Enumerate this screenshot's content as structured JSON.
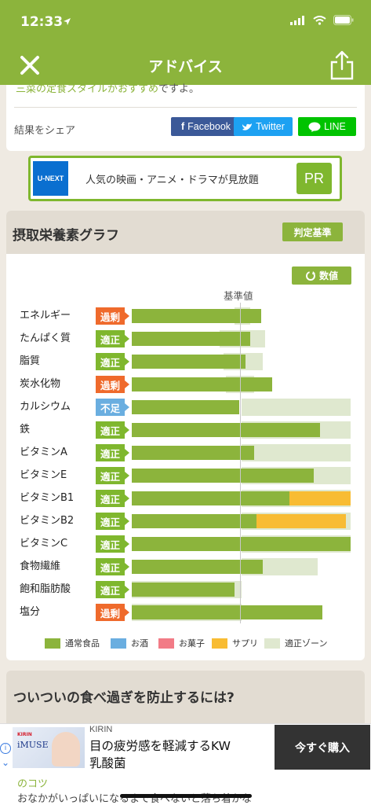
{
  "status": {
    "time": "12:33"
  },
  "nav": {
    "title": "アドバイス"
  },
  "top_card": {
    "cut_text_highlight": "三菜の定食スタイルがおすすめ",
    "cut_text_rest": "ですよ。",
    "share_label": "結果をシェア",
    "facebook": "Facebook",
    "twitter": "Twitter",
    "line": "LINE"
  },
  "ad_banner": {
    "brand": "U-NEXT",
    "text": "人気の映画・アニメ・ドラマが見放題",
    "pr": "PR"
  },
  "graph": {
    "title": "摂取栄養素グラフ",
    "judge_button": "判定基準",
    "value_button": "数値",
    "baseline_label": "基準値",
    "rows": [
      {
        "label": "エネルギー",
        "status": "過剰",
        "kind": "over",
        "main": 0.59,
        "zone": [
          0.47,
          0.54
        ],
        "supp": 0
      },
      {
        "label": "たんぱく質",
        "status": "適正",
        "kind": "ok",
        "main": 0.54,
        "zone": [
          0.4,
          0.61
        ],
        "supp": 0
      },
      {
        "label": "脂質",
        "status": "適正",
        "kind": "ok",
        "main": 0.52,
        "zone": [
          0.42,
          0.6
        ],
        "supp": 0
      },
      {
        "label": "炭水化物",
        "status": "過剰",
        "kind": "over",
        "main": 0.64,
        "zone": [
          0.43,
          0.56
        ],
        "supp": 0
      },
      {
        "label": "カルシウム",
        "status": "不足",
        "kind": "low",
        "main": 0.49,
        "zone": [
          0.5,
          1.0
        ],
        "supp": 0
      },
      {
        "label": "鉄",
        "status": "適正",
        "kind": "ok",
        "main": 0.86,
        "zone": [
          0.5,
          1.0
        ],
        "supp": 0
      },
      {
        "label": "ビタミンA",
        "status": "適正",
        "kind": "ok",
        "main": 0.56,
        "zone": [
          0.5,
          1.0
        ],
        "supp": 0
      },
      {
        "label": "ビタミンE",
        "status": "適正",
        "kind": "ok",
        "main": 0.83,
        "zone": [
          0.5,
          1.0
        ],
        "supp": 0
      },
      {
        "label": "ビタミンB1",
        "status": "適正",
        "kind": "ok",
        "main": 0.72,
        "zone": [
          0.5,
          1.0
        ],
        "supp": 0.28
      },
      {
        "label": "ビタミンB2",
        "status": "適正",
        "kind": "ok",
        "main": 0.57,
        "zone": [
          0.5,
          1.0
        ],
        "supp": 0.41
      },
      {
        "label": "ビタミンC",
        "status": "適正",
        "kind": "ok",
        "main": 1.0,
        "zone": [
          0.5,
          1.0
        ],
        "supp": 0
      },
      {
        "label": "食物繊維",
        "status": "適正",
        "kind": "ok",
        "main": 0.6,
        "zone": [
          0.5,
          0.85
        ],
        "supp": 0
      },
      {
        "label": "飽和脂肪酸",
        "status": "適正",
        "kind": "ok",
        "main": 0.47,
        "zone": [
          0.0,
          0.5
        ],
        "supp": 0
      },
      {
        "label": "塩分",
        "status": "過剰",
        "kind": "over",
        "main": 0.87,
        "zone": [
          0.0,
          0.5
        ],
        "supp": 0
      }
    ],
    "legend": [
      {
        "label": "通常食品",
        "color": "#8cb43c"
      },
      {
        "label": "お酒",
        "color": "#6aaee0"
      },
      {
        "label": "お菓子",
        "color": "#f27b86"
      },
      {
        "label": "サプリ",
        "color": "#f8bc33"
      },
      {
        "label": "適正ゾーン",
        "color": "#dfe8cf"
      }
    ]
  },
  "next_card": {
    "title": "ついついの食べ過ぎを防止するには?"
  },
  "bottom_ad": {
    "product_brand": "KIRIN",
    "product_name": "iMUSE",
    "brand": "KIRIN",
    "line1": "目の疲労感を軽減するKW",
    "line2": "乳酸菌",
    "button": "今すぐ購入"
  },
  "bottom_text": {
    "heading": "のコツ",
    "body": "おなかがいっぱいになるまで食べないと落ち着かな"
  }
}
